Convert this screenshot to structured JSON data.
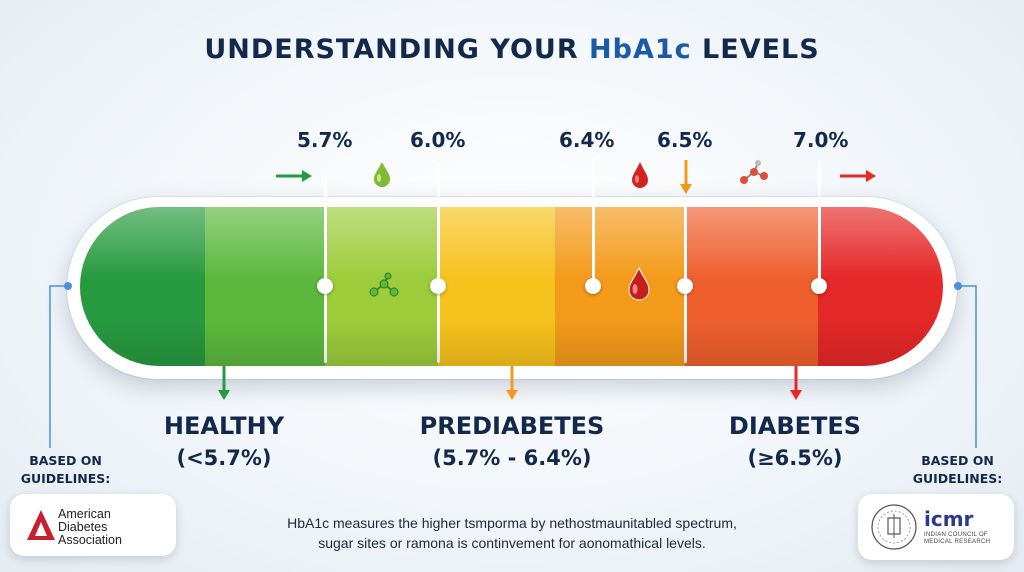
{
  "title": {
    "prefix": "UNDERSTANDING YOUR ",
    "highlight": "HbA1c",
    "suffix": " LEVELS"
  },
  "thresholds": [
    {
      "label": "5.7%",
      "value": 5.7
    },
    {
      "label": "6.0%",
      "value": 6.0
    },
    {
      "label": "6.4%",
      "value": 6.4
    },
    {
      "label": "6.5%",
      "value": 6.5
    },
    {
      "label": "7.0%",
      "value": 7.0
    }
  ],
  "colors": {
    "dark_green": "#279a3f",
    "green": "#5cb83c",
    "light_green": "#9ccc3a",
    "yellow": "#f6c21c",
    "orange": "#f39a1a",
    "orange_red": "#ef5f2e",
    "red": "#e52828",
    "navy": "#13294b"
  },
  "categories": [
    {
      "name": "HEALTHY",
      "range": "(<5.7%)",
      "color": "#279a3f"
    },
    {
      "name": "PREDIABETES",
      "range": "(5.7% - 6.4%)",
      "color": "#f39a1a"
    },
    {
      "name": "DIABETES",
      "range": "(≥6.5%)",
      "color": "#e52828"
    }
  ],
  "icons": {
    "top": [
      "arrow-right-icon",
      "drop-icon",
      "blood-drop-icon",
      "arrow-down-icon",
      "molecule-icon",
      "arrow-right-icon"
    ],
    "bar": [
      "molecule-icon",
      "blood-drop-icon"
    ]
  },
  "left_source": {
    "label_line1": "BASED ON",
    "label_line2": "GUIDELINES:",
    "logo_line1": "American",
    "logo_line2": "Diabetes",
    "logo_line3": "Association"
  },
  "right_source": {
    "label_line1": "BASED ON",
    "label_line2": "GUIDELINES:",
    "logo_word": "icmr",
    "logo_sub1": "INDIAN COUNCIL OF",
    "logo_sub2": "MEDICAL RESEARCH"
  },
  "footer": {
    "line1": "HbA1c measures the higher tsmporma by nethostmaunitabled spectrum,",
    "line2": "sugar sites or ramona is continvement for aonomathical levels."
  }
}
